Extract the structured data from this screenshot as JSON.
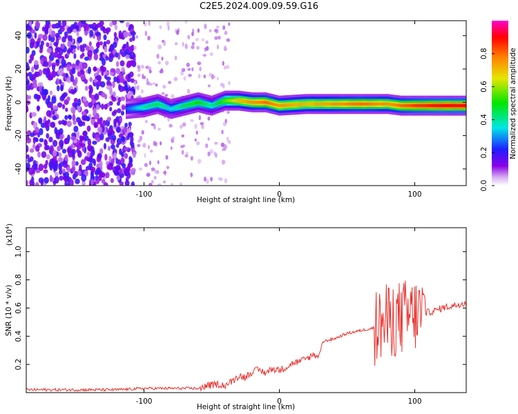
{
  "page": {
    "title": "C2E5.2024.009.09.59.G16"
  },
  "chart_data": [
    {
      "type": "heatmap",
      "title": "",
      "xlabel": "Height of straight line (km)",
      "ylabel": "Frequency (Hz)",
      "xlim": [
        -187,
        138
      ],
      "ylim": [
        -50,
        49
      ],
      "x_ticks": [
        -100,
        0,
        100
      ],
      "y_ticks": [
        -40,
        -20,
        0,
        20,
        40
      ],
      "colorbar": {
        "label": "Normalized spectral amplitude",
        "range": [
          0.0,
          1.0
        ],
        "ticks": [
          0.0,
          0.2,
          0.4,
          0.6,
          0.8
        ],
        "colormap": "rainbow (white, violet, blue, cyan, green, yellow, orange, red, magenta)"
      },
      "ridge": {
        "description": "strong narrow band near 0 Hz from about -110 km to 138 km",
        "x": [
          -113,
          -100,
          -90,
          -80,
          -70,
          -60,
          -50,
          -40,
          -30,
          -20,
          -10,
          0,
          20,
          40,
          60,
          80,
          90,
          100,
          120,
          138
        ],
        "frequency": [
          -4,
          -3,
          -1,
          -4,
          -2,
          0,
          -2,
          1,
          1,
          0,
          0,
          -2,
          -1,
          -1,
          -1,
          -1,
          -2,
          -2,
          -2,
          -2
        ],
        "amplitude": [
          0.25,
          0.4,
          0.45,
          0.35,
          0.45,
          0.5,
          0.4,
          0.55,
          0.7,
          0.75,
          0.8,
          0.75,
          0.7,
          0.75,
          0.8,
          0.75,
          0.8,
          0.85,
          0.9,
          0.9
        ]
      },
      "noise_region": {
        "x_range": [
          -187,
          -107
        ],
        "frequency_range": [
          -50,
          49
        ],
        "amplitude": 0.15
      }
    },
    {
      "type": "line",
      "title": "",
      "xlabel": "Height of straight line (km)",
      "ylabel": "SNR (10 * v/v)",
      "y_scale_label": "(x10",
      "y_scale_exponent": "4",
      "y_scale_close": ")",
      "xlim": [
        -187,
        138
      ],
      "ylim": [
        0.0,
        1.17
      ],
      "x_ticks": [
        -100,
        0,
        100
      ],
      "y_ticks": [
        0.2,
        0.4,
        0.6,
        0.8,
        1.0
      ],
      "series": [
        {
          "color": "#e8322e",
          "x": [
            -187,
            -120,
            -100,
            -80,
            -60,
            -52,
            -45,
            -40,
            -35,
            -30,
            -25,
            -20,
            -15,
            -10,
            -5,
            0,
            5,
            10,
            15,
            20,
            25,
            28,
            30,
            32,
            35,
            40,
            45,
            50,
            55,
            60,
            65,
            70,
            75,
            80,
            85,
            90,
            95,
            100,
            105,
            110,
            115,
            120,
            125,
            130,
            138
          ],
          "y": [
            0.02,
            0.02,
            0.03,
            0.03,
            0.03,
            0.05,
            0.06,
            0.05,
            0.08,
            0.12,
            0.11,
            0.15,
            0.16,
            0.14,
            0.17,
            0.16,
            0.18,
            0.21,
            0.22,
            0.24,
            0.27,
            0.26,
            0.28,
            0.36,
            0.37,
            0.38,
            0.4,
            0.42,
            0.43,
            0.44,
            0.45,
            0.46,
            0.48,
            0.5,
            0.52,
            0.53,
            0.54,
            0.55,
            0.56,
            0.57,
            0.58,
            0.6,
            0.61,
            0.62,
            0.64
          ]
        }
      ]
    }
  ]
}
